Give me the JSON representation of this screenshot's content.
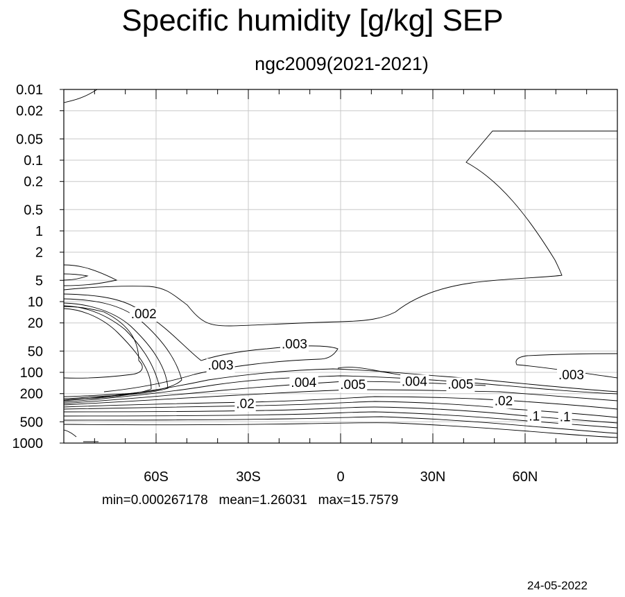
{
  "title": "Specific humidity [g/kg] SEP",
  "subtitle": "ngc2009(2021-2021)",
  "stats": "min=0.000267178   mean=1.26031   max=15.7579",
  "date": "24-05-2022",
  "chart_data": {
    "type": "contour",
    "variable": "Specific humidity",
    "units": "g/kg",
    "month": "SEP",
    "x_axis": {
      "quantity": "latitude",
      "range": [
        -90,
        90
      ],
      "ticks": [
        -60,
        -30,
        0,
        30,
        60
      ],
      "tick_labels": [
        "60S",
        "30S",
        "0",
        "30N",
        "60N"
      ]
    },
    "y_axis": {
      "quantity": "pressure",
      "scale": "log",
      "reversed": true,
      "range": [
        0.01,
        1000
      ],
      "ticks": [
        0.01,
        0.02,
        0.05,
        0.1,
        0.2,
        0.5,
        1,
        2,
        5,
        10,
        20,
        50,
        100,
        200,
        500,
        1000
      ],
      "tick_labels": [
        "0.01",
        "0.02",
        "0.05",
        "0.1",
        "0.2",
        "0.5",
        "1",
        "2",
        "5",
        "10",
        "20",
        "50",
        "100",
        "200",
        "500",
        "1000"
      ]
    },
    "grid": true,
    "contour_labels": [
      {
        "text": ".002",
        "lat": -64,
        "p": 15
      },
      {
        "text": ".003",
        "lat": -39,
        "p": 80
      },
      {
        "text": ".003",
        "lat": -15,
        "p": 40
      },
      {
        "text": ".004",
        "lat": -12,
        "p": 140
      },
      {
        "text": ".005",
        "lat": 4,
        "p": 150
      },
      {
        "text": ".004",
        "lat": 24,
        "p": 135
      },
      {
        "text": ".005",
        "lat": 39,
        "p": 148
      },
      {
        "text": ".003",
        "lat": 75,
        "p": 110
      },
      {
        "text": ".02",
        "lat": -31,
        "p": 280
      },
      {
        "text": ".02",
        "lat": 53,
        "p": 255
      },
      {
        "text": ".1",
        "lat": 63,
        "p": 420
      },
      {
        "text": ".1",
        "lat": 73,
        "p": 430
      }
    ],
    "min": 0.000267178,
    "mean": 1.26031,
    "max": 15.7579
  }
}
